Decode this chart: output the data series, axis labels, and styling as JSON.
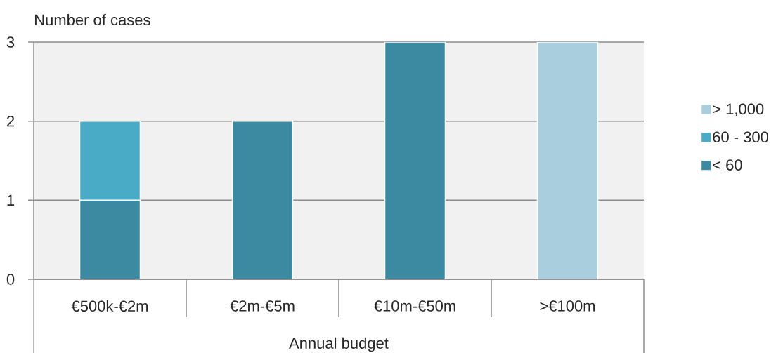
{
  "chart_data": {
    "type": "bar",
    "stacked": true,
    "ylabel": "Number of cases",
    "xlabel": "Annual budget",
    "categories": [
      "€500k-€2m",
      "€2m-€5m",
      "€10m-€50m",
      ">€100m"
    ],
    "series": [
      {
        "name": "< 60",
        "color": "#3b8aa2",
        "values": [
          1,
          2,
          3,
          null
        ]
      },
      {
        "name": "60 - 300",
        "color": "#4aabc6",
        "values": [
          1,
          null,
          null,
          null
        ]
      },
      {
        "name": "> 1,000",
        "color": "#a9cfde",
        "values": [
          null,
          null,
          null,
          3
        ]
      }
    ],
    "ylim": [
      0,
      3
    ],
    "yticks": [
      0,
      1,
      2,
      3
    ],
    "grid": "y",
    "legend": "right"
  }
}
